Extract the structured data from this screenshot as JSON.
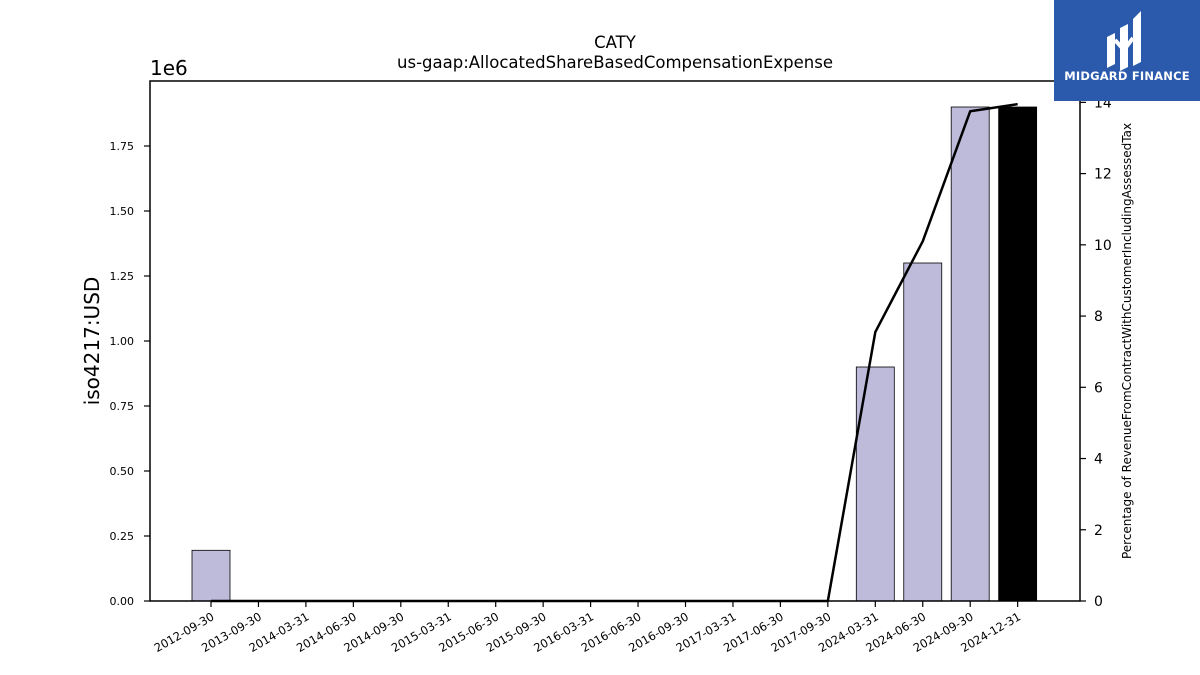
{
  "brand": {
    "name": "MIDGARD FINANCE",
    "bg_color": "#2b5aad"
  },
  "chart_data": {
    "type": "bar",
    "title": "CATY",
    "subtitle": "us-gaap:AllocatedShareBasedCompensationExpense",
    "ylabel": "iso4217:USD",
    "y2label": "Percentage of RevenueFromContractWithCustomerIncludingAssessedTax",
    "y_offset_label": "1e6",
    "ylim": [
      0,
      2.0
    ],
    "y2lim": [
      0,
      14.6
    ],
    "yticks": [
      {
        "value": 0.0,
        "label": "0.00"
      },
      {
        "value": 0.25,
        "label": "0.25"
      },
      {
        "value": 0.5,
        "label": "0.50"
      },
      {
        "value": 0.75,
        "label": "0.75"
      },
      {
        "value": 1.0,
        "label": "1.00"
      },
      {
        "value": 1.25,
        "label": "1.25"
      },
      {
        "value": 1.5,
        "label": "1.50"
      },
      {
        "value": 1.75,
        "label": "1.75"
      }
    ],
    "y2ticks": [
      {
        "value": 0,
        "label": "0"
      },
      {
        "value": 2,
        "label": "2"
      },
      {
        "value": 4,
        "label": "4"
      },
      {
        "value": 6,
        "label": "6"
      },
      {
        "value": 8,
        "label": "8"
      },
      {
        "value": 10,
        "label": "10"
      },
      {
        "value": 12,
        "label": "12"
      },
      {
        "value": 14,
        "label": "14"
      }
    ],
    "categories": [
      "2012-09-30",
      "2013-09-30",
      "2014-03-31",
      "2014-06-30",
      "2014-09-30",
      "2015-03-31",
      "2015-06-30",
      "2015-09-30",
      "2016-03-31",
      "2016-06-30",
      "2016-09-30",
      "2017-03-31",
      "2017-06-30",
      "2017-09-30",
      "2024-03-31",
      "2024-06-30",
      "2024-09-30",
      "2024-12-31"
    ],
    "series": [
      {
        "kind": "bar",
        "values": [
          0.195,
          0,
          0,
          0,
          0,
          0,
          0,
          0,
          0,
          0,
          0,
          0,
          0,
          0,
          0.9,
          1.3,
          1.9,
          1.9
        ],
        "colors": [
          "#bebada",
          "#bebada",
          "#bebada",
          "#bebada",
          "#bebada",
          "#bebada",
          "#bebada",
          "#bebada",
          "#bebada",
          "#bebada",
          "#bebada",
          "#bebada",
          "#bebada",
          "#bebada",
          "#bebada",
          "#bebada",
          "#bebada",
          "#000000"
        ]
      },
      {
        "kind": "line",
        "axis": "right",
        "color": "#000000",
        "values": [
          0,
          0,
          0,
          0,
          0,
          0,
          0,
          0,
          0,
          0,
          0,
          0,
          0,
          0,
          7.55,
          10.1,
          13.75,
          13.95
        ]
      }
    ],
    "grid": false,
    "legend": "none"
  }
}
